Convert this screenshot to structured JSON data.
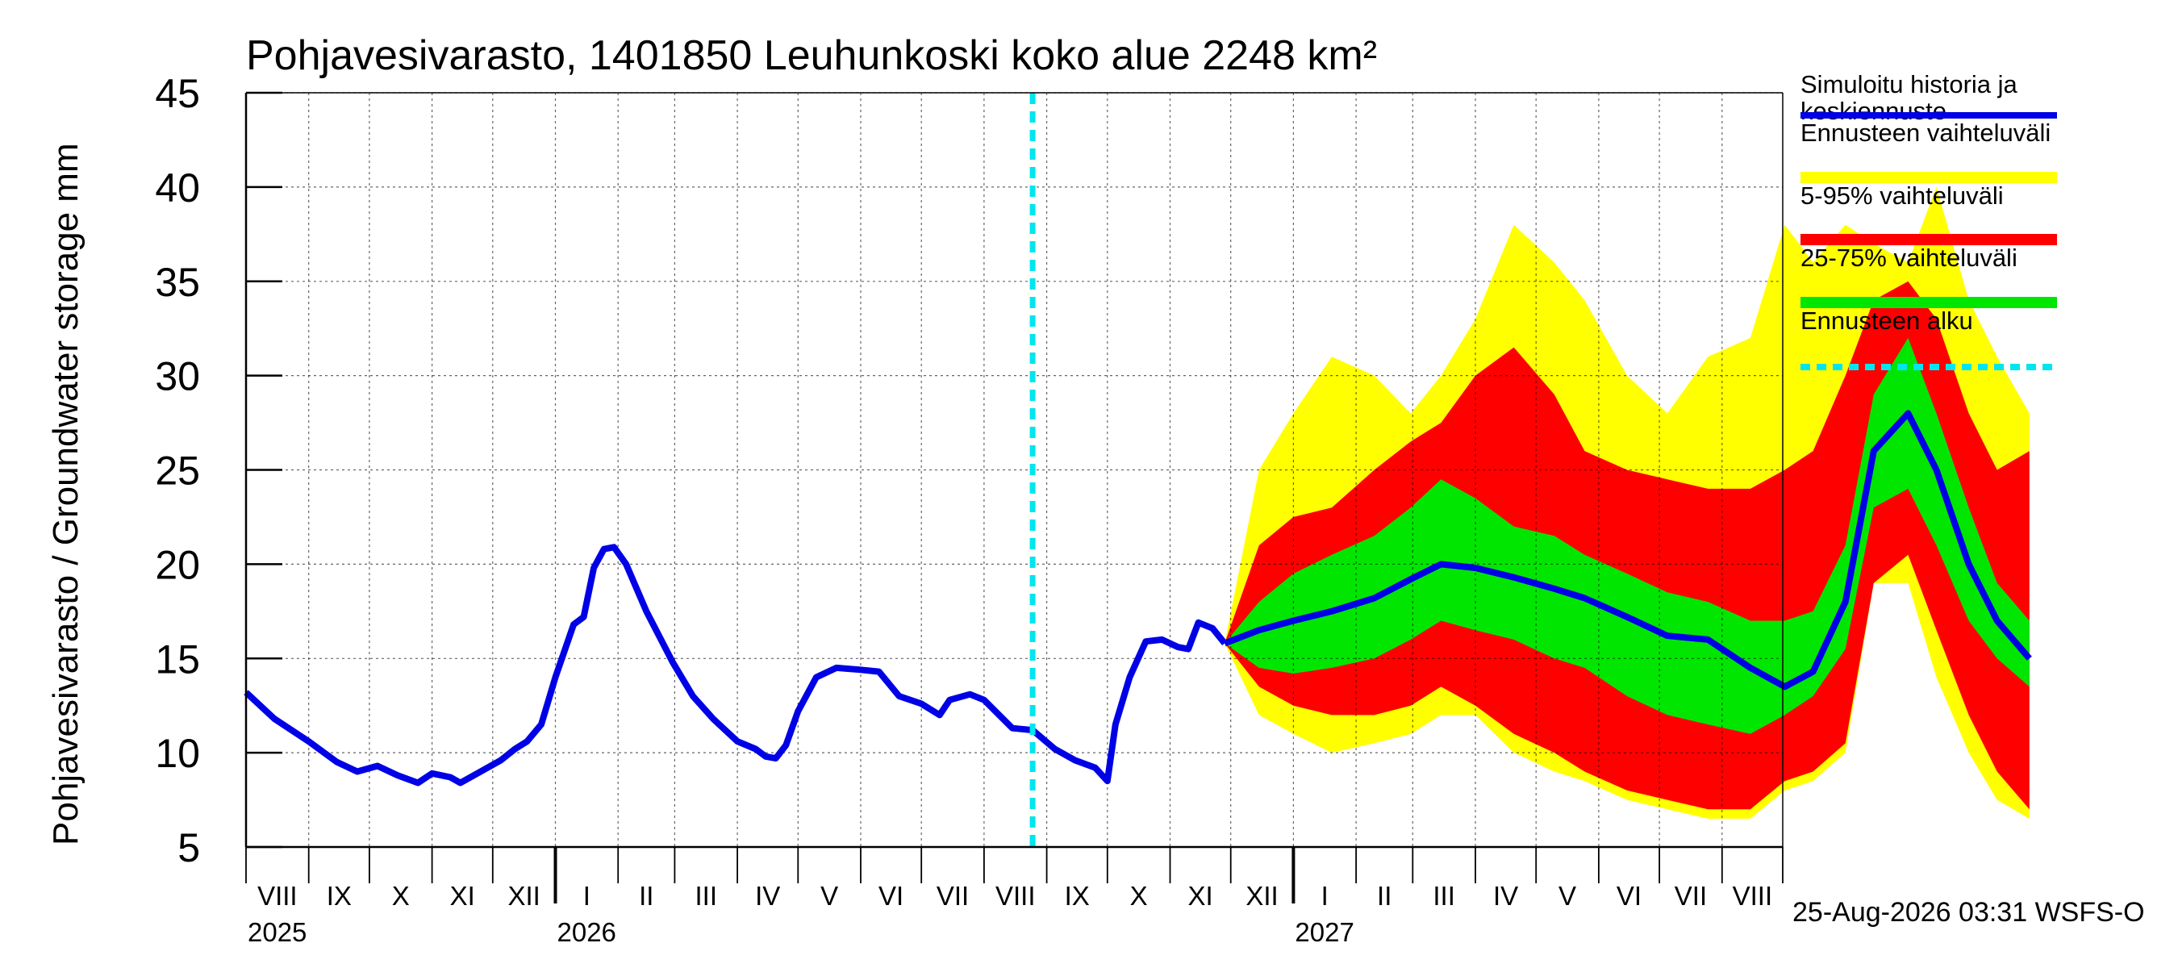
{
  "chart_data": {
    "type": "area",
    "title": "Pohjavesivarasto, 1401850 Leuhunkoski koko alue 2248 km²",
    "ylabel": "Pohjavesivarasto / Groundwater storage   mm",
    "ylim": [
      5,
      45
    ],
    "yticks": [
      "5",
      "10",
      "15",
      "20",
      "25",
      "30",
      "35",
      "40",
      "45"
    ],
    "grid": true,
    "legend_position": "right",
    "x_start": "2025-08-01",
    "x_end": "2027-08-31",
    "forecast_start": "2026-08-25",
    "month_labels": [
      "VIII",
      "IX",
      "X",
      "XI",
      "XII",
      "I",
      "II",
      "III",
      "IV",
      "V",
      "VI",
      "VII",
      "VIII",
      "IX",
      "X",
      "XI",
      "XII",
      "I",
      "II",
      "III",
      "IV",
      "V",
      "VI",
      "VII",
      "VIII"
    ],
    "year_labels": [
      "2025",
      "2026",
      "2027"
    ],
    "footer": "25-Aug-2026 03:31 WSFS-O",
    "legend": [
      {
        "label": "Simuloitu historia ja keskiennuste",
        "color": "#0000e6",
        "style": "line"
      },
      {
        "label": "Ennusteen vaihteluväli",
        "color": "#ffff00",
        "style": "band"
      },
      {
        "label": "5-95% vaihteluväli",
        "color": "#ff0000",
        "style": "band"
      },
      {
        "label": "25-75% vaihteluväli",
        "color": "#00e600",
        "style": "band"
      },
      {
        "label": "Ennusteen alku",
        "color": "#00e5ee",
        "style": "dashed"
      }
    ],
    "history": [
      [
        "2025-08-01",
        13.2
      ],
      [
        "2025-08-15",
        11.8
      ],
      [
        "2025-09-01",
        10.6
      ],
      [
        "2025-09-15",
        9.5
      ],
      [
        "2025-09-25",
        9.0
      ],
      [
        "2025-10-05",
        9.3
      ],
      [
        "2025-10-15",
        8.8
      ],
      [
        "2025-10-25",
        8.4
      ],
      [
        "2025-11-01",
        8.9
      ],
      [
        "2025-11-10",
        8.7
      ],
      [
        "2025-11-15",
        8.4
      ],
      [
        "2025-11-25",
        9.0
      ],
      [
        "2025-12-05",
        9.6
      ],
      [
        "2025-12-12",
        10.2
      ],
      [
        "2025-12-18",
        10.6
      ],
      [
        "2025-12-25",
        11.5
      ],
      [
        "2026-01-01",
        14.0
      ],
      [
        "2026-01-10",
        16.8
      ],
      [
        "2026-01-15",
        17.2
      ],
      [
        "2026-01-20",
        19.8
      ],
      [
        "2026-01-25",
        20.8
      ],
      [
        "2026-01-30",
        20.9
      ],
      [
        "2026-02-05",
        20.0
      ],
      [
        "2026-02-15",
        17.5
      ],
      [
        "2026-02-28",
        14.8
      ],
      [
        "2026-03-10",
        13.0
      ],
      [
        "2026-03-20",
        11.8
      ],
      [
        "2026-04-01",
        10.6
      ],
      [
        "2026-04-10",
        10.2
      ],
      [
        "2026-04-15",
        9.8
      ],
      [
        "2026-04-20",
        9.7
      ],
      [
        "2026-04-25",
        10.4
      ],
      [
        "2026-05-01",
        12.2
      ],
      [
        "2026-05-10",
        14.0
      ],
      [
        "2026-05-20",
        14.5
      ],
      [
        "2026-06-01",
        14.4
      ],
      [
        "2026-06-10",
        14.3
      ],
      [
        "2026-06-20",
        13.0
      ],
      [
        "2026-07-01",
        12.6
      ],
      [
        "2026-07-10",
        12.0
      ],
      [
        "2026-07-15",
        12.8
      ],
      [
        "2026-07-25",
        13.1
      ],
      [
        "2026-08-01",
        12.8
      ],
      [
        "2026-08-15",
        11.3
      ],
      [
        "2026-08-25",
        11.2
      ],
      [
        "2026-09-05",
        10.2
      ],
      [
        "2026-09-15",
        9.6
      ],
      [
        "2026-09-25",
        9.2
      ],
      [
        "2026-10-01",
        8.5
      ],
      [
        "2026-10-05",
        11.5
      ],
      [
        "2026-10-12",
        14.0
      ],
      [
        "2026-10-20",
        15.9
      ],
      [
        "2026-10-28",
        16.0
      ],
      [
        "2026-11-05",
        15.6
      ],
      [
        "2026-11-10",
        15.5
      ],
      [
        "2026-11-15",
        16.9
      ],
      [
        "2026-11-22",
        16.6
      ],
      [
        "2026-11-28",
        15.8
      ]
    ],
    "forecast": {
      "dates": [
        "2026-11-28",
        "2026-12-15",
        "2027-01-01",
        "2027-01-20",
        "2027-02-10",
        "2027-02-28",
        "2027-03-15",
        "2027-04-01",
        "2027-04-20",
        "2027-05-10",
        "2027-05-25",
        "2027-06-15",
        "2027-07-05",
        "2027-07-25",
        "2027-08-15",
        "2027-09-01",
        "2027-09-15",
        "2027-10-01",
        "2027-10-15",
        "2027-11-01",
        "2027-11-15",
        "2027-12-01",
        "2027-12-15",
        "2027-12-31"
      ],
      "median": [
        15.8,
        16.5,
        17.0,
        17.5,
        18.2,
        19.2,
        20.0,
        19.8,
        19.3,
        18.7,
        18.2,
        17.2,
        16.2,
        16.0,
        14.5,
        13.5,
        14.3,
        18.0,
        26.0,
        28.0,
        25.0,
        20.0,
        17.0,
        15.0
      ],
      "p25": [
        15.8,
        14.5,
        14.2,
        14.5,
        15.0,
        16.0,
        17.0,
        16.5,
        16.0,
        15.0,
        14.5,
        13.0,
        12.0,
        11.5,
        11.0,
        12.0,
        13.0,
        15.5,
        23.0,
        24.0,
        21.0,
        17.0,
        15.0,
        13.5
      ],
      "p75": [
        15.8,
        18.0,
        19.5,
        20.5,
        21.5,
        23.0,
        24.5,
        23.5,
        22.0,
        21.5,
        20.5,
        19.5,
        18.5,
        18.0,
        17.0,
        17.0,
        17.5,
        21.0,
        29.0,
        32.0,
        28.0,
        23.0,
        19.0,
        17.0
      ],
      "p5": [
        15.8,
        13.5,
        12.5,
        12.0,
        12.0,
        12.5,
        13.5,
        12.5,
        11.0,
        10.0,
        9.0,
        8.0,
        7.5,
        7.0,
        7.0,
        8.5,
        9.0,
        10.5,
        19.0,
        20.5,
        16.5,
        12.0,
        9.0,
        7.0
      ],
      "p95": [
        15.8,
        21.0,
        22.5,
        23.0,
        25.0,
        26.5,
        27.5,
        30.0,
        31.5,
        29.0,
        26.0,
        25.0,
        24.5,
        24.0,
        24.0,
        25.0,
        26.0,
        30.0,
        34.0,
        35.0,
        33.0,
        28.0,
        25.0,
        26.0
      ],
      "min": [
        15.8,
        12.0,
        11.0,
        10.0,
        10.5,
        11.0,
        12.0,
        12.0,
        10.0,
        9.0,
        8.5,
        7.5,
        7.0,
        6.5,
        6.5,
        8.0,
        8.5,
        10.0,
        19.0,
        19.0,
        14.0,
        10.0,
        7.5,
        6.5
      ],
      "max": [
        15.8,
        25.0,
        28.0,
        31.0,
        30.0,
        28.0,
        30.0,
        33.0,
        38.0,
        36.0,
        34.0,
        30.0,
        28.0,
        31.0,
        32.0,
        38.0,
        36.0,
        38.0,
        37.0,
        36.0,
        40.0,
        34.0,
        31.0,
        28.0
      ]
    }
  }
}
